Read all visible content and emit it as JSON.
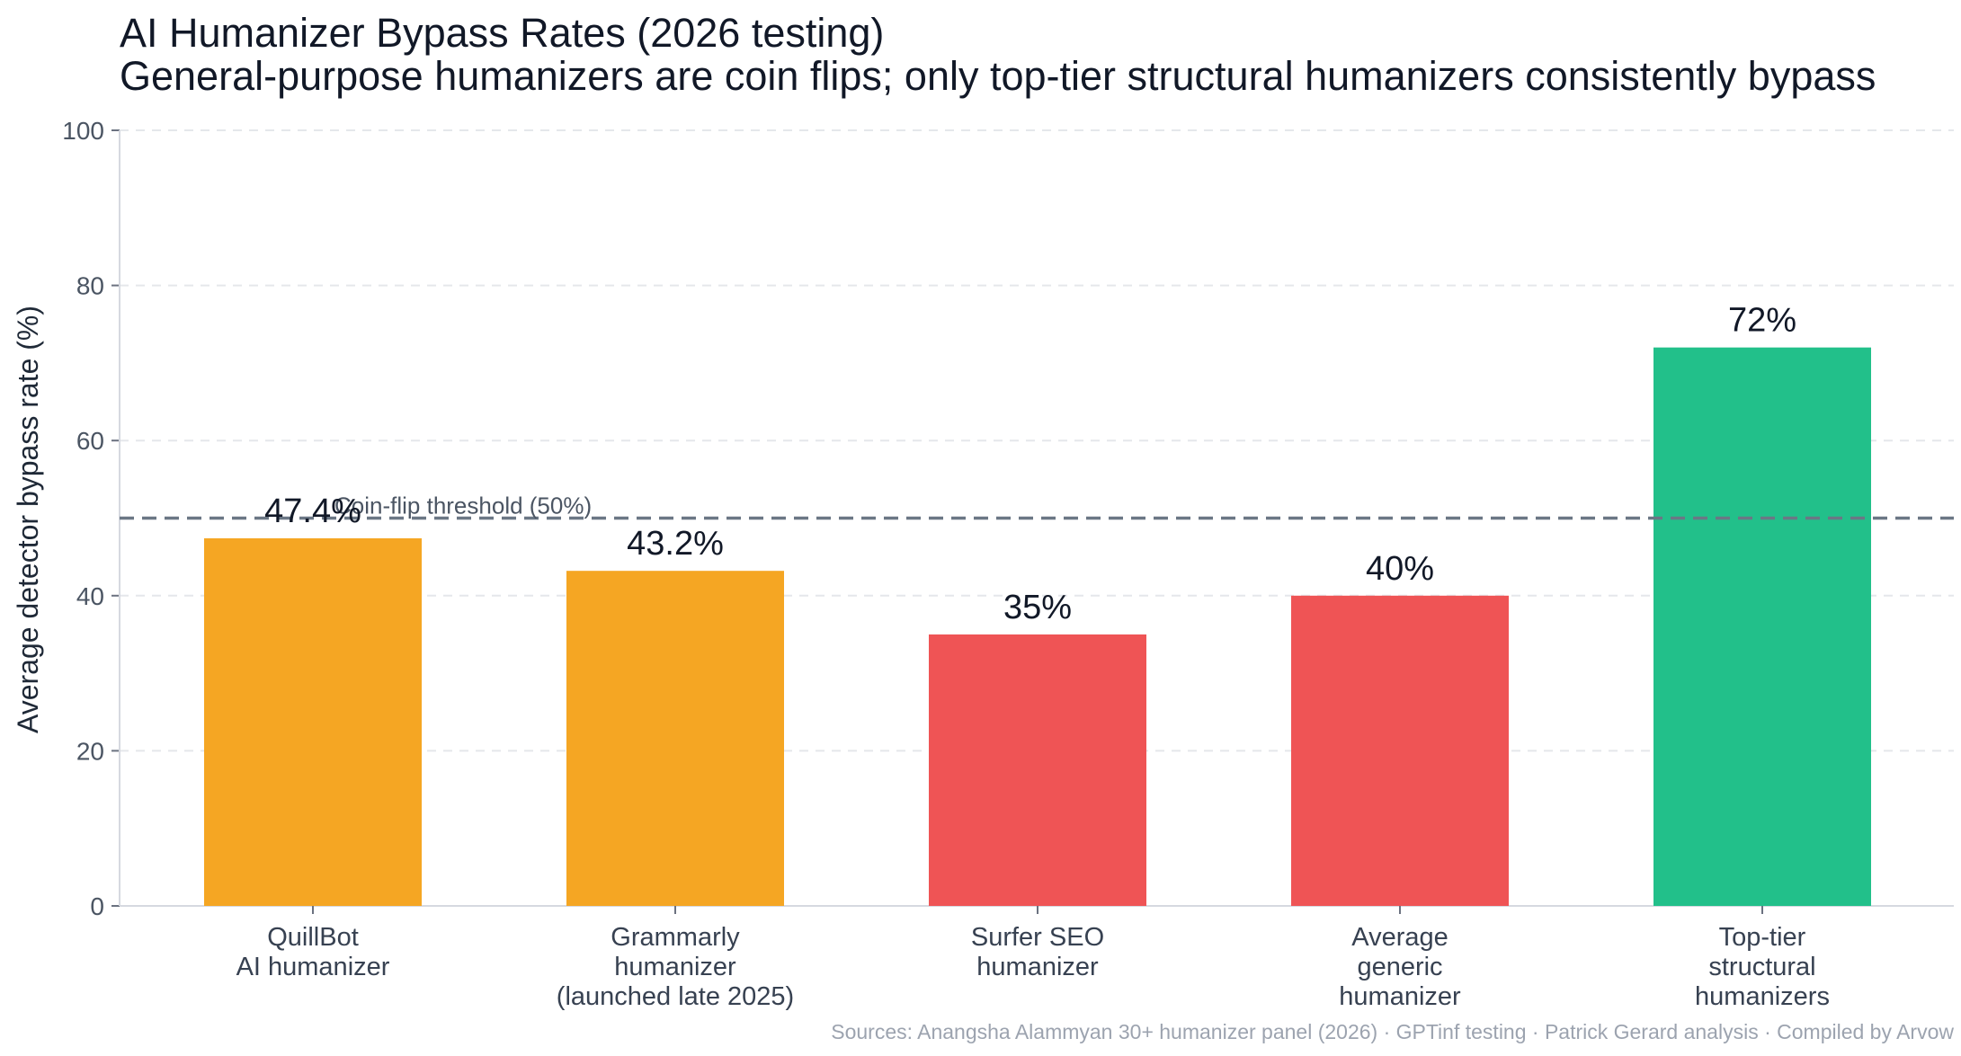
{
  "chart_data": {
    "type": "bar",
    "title": "AI Humanizer Bypass Rates (2026 testing)",
    "subtitle": "General-purpose humanizers are coin flips; only top-tier structural humanizers consistently bypass",
    "ylabel": "Average detector bypass rate (%)",
    "xlabel": "",
    "ylim": [
      0,
      100
    ],
    "yticks": [
      "0",
      "20",
      "40",
      "60",
      "80",
      "100"
    ],
    "grid": true,
    "categories": [
      [
        "QuillBot",
        "AI humanizer"
      ],
      [
        "Grammarly",
        "humanizer",
        "(launched late 2025)"
      ],
      [
        "Surfer SEO",
        "humanizer"
      ],
      [
        "Average",
        "generic",
        "humanizer"
      ],
      [
        "Top-tier",
        "structural",
        "humanizers"
      ]
    ],
    "values": [
      47.4,
      43.2,
      35,
      40,
      72
    ],
    "value_labels": [
      "47.4%",
      "43.2%",
      "35%",
      "40%",
      "72%"
    ],
    "bar_colors": [
      "#f5a623",
      "#f5a623",
      "#ef5455",
      "#ef5455",
      "#22c08a"
    ],
    "reference_line": {
      "value": 50,
      "label": "Coin-flip threshold (50%)",
      "color": "#6b7785"
    },
    "source": "Sources: Anangsha Alammyan 30+ humanizer panel (2026) · GPTinf testing · Patrick Gerard analysis · Compiled by Arvow"
  }
}
